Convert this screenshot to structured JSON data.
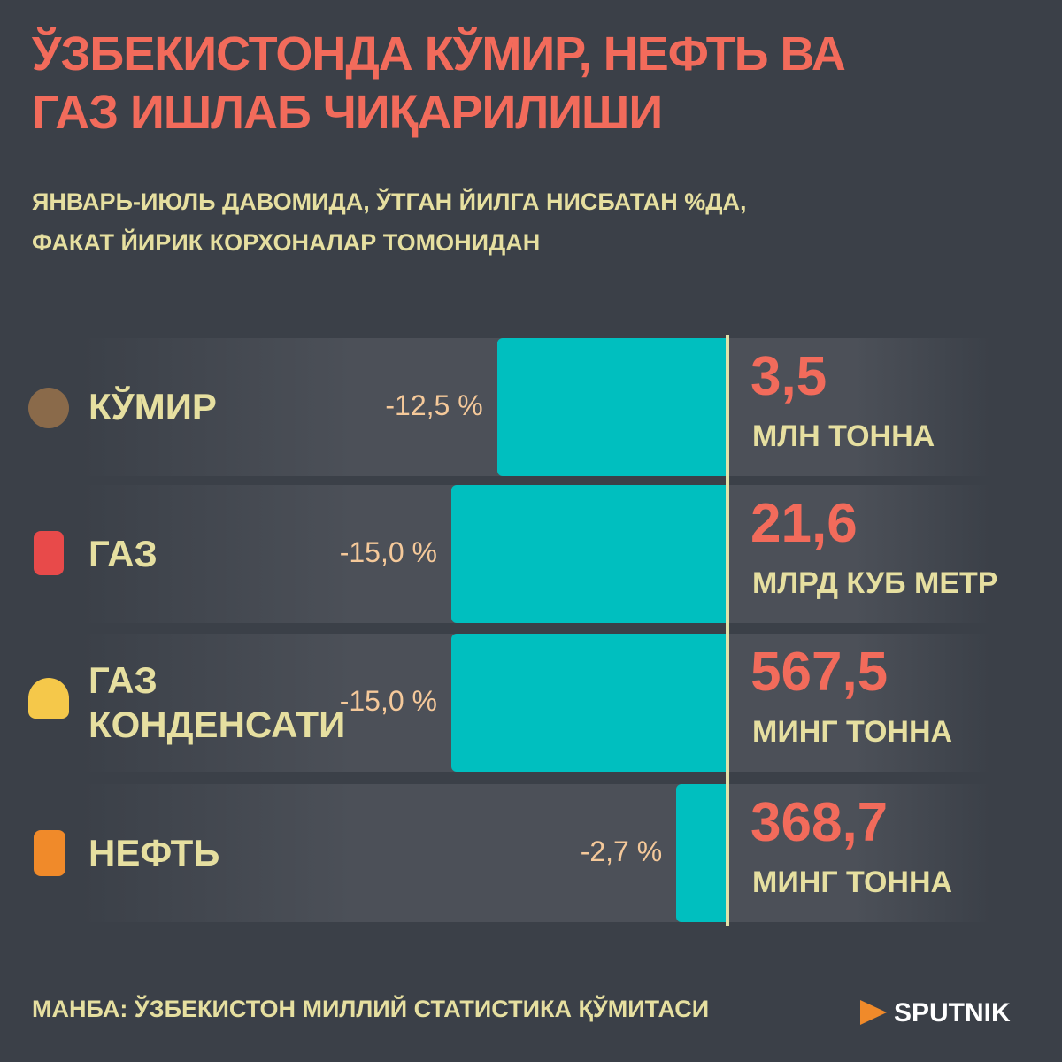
{
  "chart_data": {
    "type": "bar",
    "title": "ЎЗБЕКИСТОНДА КЎМИР, НЕФТЬ ВА ГАЗ ИШЛАБ ЧИҚАРИЛИШИ",
    "subtitle": "ЯНВАРЬ-ИЮЛЬ ДАВОМИДА, ЎТГАН ЙИЛГА НИСБАТАН %ДА, ФАКАТ ЙИРИК КОРХОНАЛАР ТОМОНИДАН",
    "categories": [
      "КЎМИР",
      "ГАЗ",
      "ГАЗ КОНДЕНСАТИ",
      "НЕФТЬ"
    ],
    "values": [
      -12.5,
      -15.0,
      -15.0,
      -2.7
    ],
    "value_labels": [
      "-12,5 %",
      "-15,0 %",
      "-15,0 %",
      "-2,7 %"
    ],
    "volumes": [
      "3,5",
      "21,6",
      "567,5",
      "368,7"
    ],
    "volume_units": [
      "МЛН ТОННА",
      "МЛРД КУБ МЕТР",
      "МИНГ ТОННА",
      "МИНГ ТОННА"
    ],
    "color": "#00bfbf",
    "source": "МАНБА: ЎЗБЕКИСТОН МИЛЛИЙ СТАТИСТИКА ҚЎМИТАСИ",
    "brand": "SPUTNIK"
  }
}
